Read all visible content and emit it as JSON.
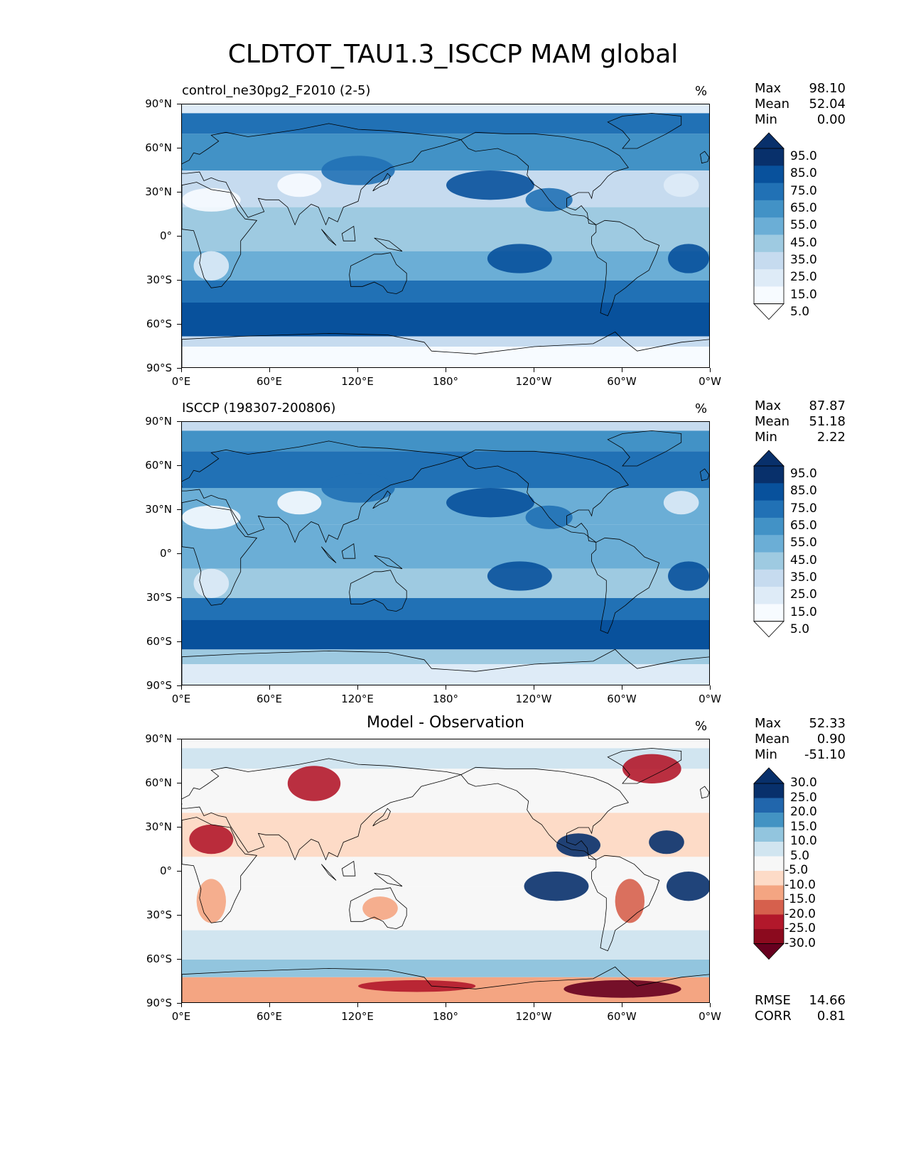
{
  "title": "CLDTOT_TAU1.3_ISCCP MAM global",
  "lat_labels": [
    "90°N",
    "60°N",
    "30°N",
    "0°",
    "30°S",
    "60°S",
    "90°S"
  ],
  "lon_labels": [
    "0°E",
    "60°E",
    "120°E",
    "180°",
    "120°W",
    "60°W",
    "0°W"
  ],
  "units": "%",
  "panels": [
    {
      "id": "model",
      "title": "control_ne30pg2_F2010 (2-5)",
      "title_center": false,
      "stats": [
        {
          "label": "Max",
          "value": "98.10"
        },
        {
          "label": "Mean",
          "value": "52.04"
        },
        {
          "label": "Min",
          "value": "0.00"
        }
      ],
      "colorbar": {
        "labels": [
          "95.0",
          "85.0",
          "75.0",
          "65.0",
          "55.0",
          "45.0",
          "35.0",
          "25.0",
          "15.0",
          "5.0"
        ],
        "colors": [
          "#08306b",
          "#08519c",
          "#2171b5",
          "#4292c6",
          "#6baed6",
          "#9ecae1",
          "#c6dbef",
          "#deebf7",
          "#f7fbff"
        ],
        "extend_top": "#08306b",
        "extend_bottom": "#ffffff"
      }
    },
    {
      "id": "obs",
      "title": "ISCCP (198307-200806)",
      "title_center": false,
      "stats": [
        {
          "label": "Max",
          "value": "87.87"
        },
        {
          "label": "Mean",
          "value": "51.18"
        },
        {
          "label": "Min",
          "value": "2.22"
        }
      ],
      "colorbar": {
        "labels": [
          "95.0",
          "85.0",
          "75.0",
          "65.0",
          "55.0",
          "45.0",
          "35.0",
          "25.0",
          "15.0",
          "5.0"
        ],
        "colors": [
          "#08306b",
          "#08519c",
          "#2171b5",
          "#4292c6",
          "#6baed6",
          "#9ecae1",
          "#c6dbef",
          "#deebf7",
          "#f7fbff"
        ],
        "extend_top": "#08306b",
        "extend_bottom": "#ffffff"
      }
    },
    {
      "id": "diff",
      "title": "Model - Observation",
      "title_center": true,
      "stats": [
        {
          "label": "Max",
          "value": "52.33"
        },
        {
          "label": "Mean",
          "value": "0.90"
        },
        {
          "label": "Min",
          "value": "-51.10"
        }
      ],
      "colorbar": {
        "labels": [
          "30.0",
          "25.0",
          "20.0",
          "15.0",
          "10.0",
          "5.0",
          "-5.0",
          "-10.0",
          "-15.0",
          "-20.0",
          "-25.0",
          "-30.0"
        ],
        "colors": [
          "#08306b",
          "#2166ac",
          "#4393c3",
          "#92c5de",
          "#d1e5f0",
          "#f7f7f7",
          "#fddbc7",
          "#f4a582",
          "#d6604d",
          "#b2182b",
          "#8b0a1e"
        ],
        "extend_top": "#08306b",
        "extend_bottom": "#67001f"
      },
      "extra_stats": [
        {
          "label": "RMSE",
          "value": "14.66"
        },
        {
          "label": "CORR",
          "value": "0.81"
        }
      ]
    }
  ]
}
